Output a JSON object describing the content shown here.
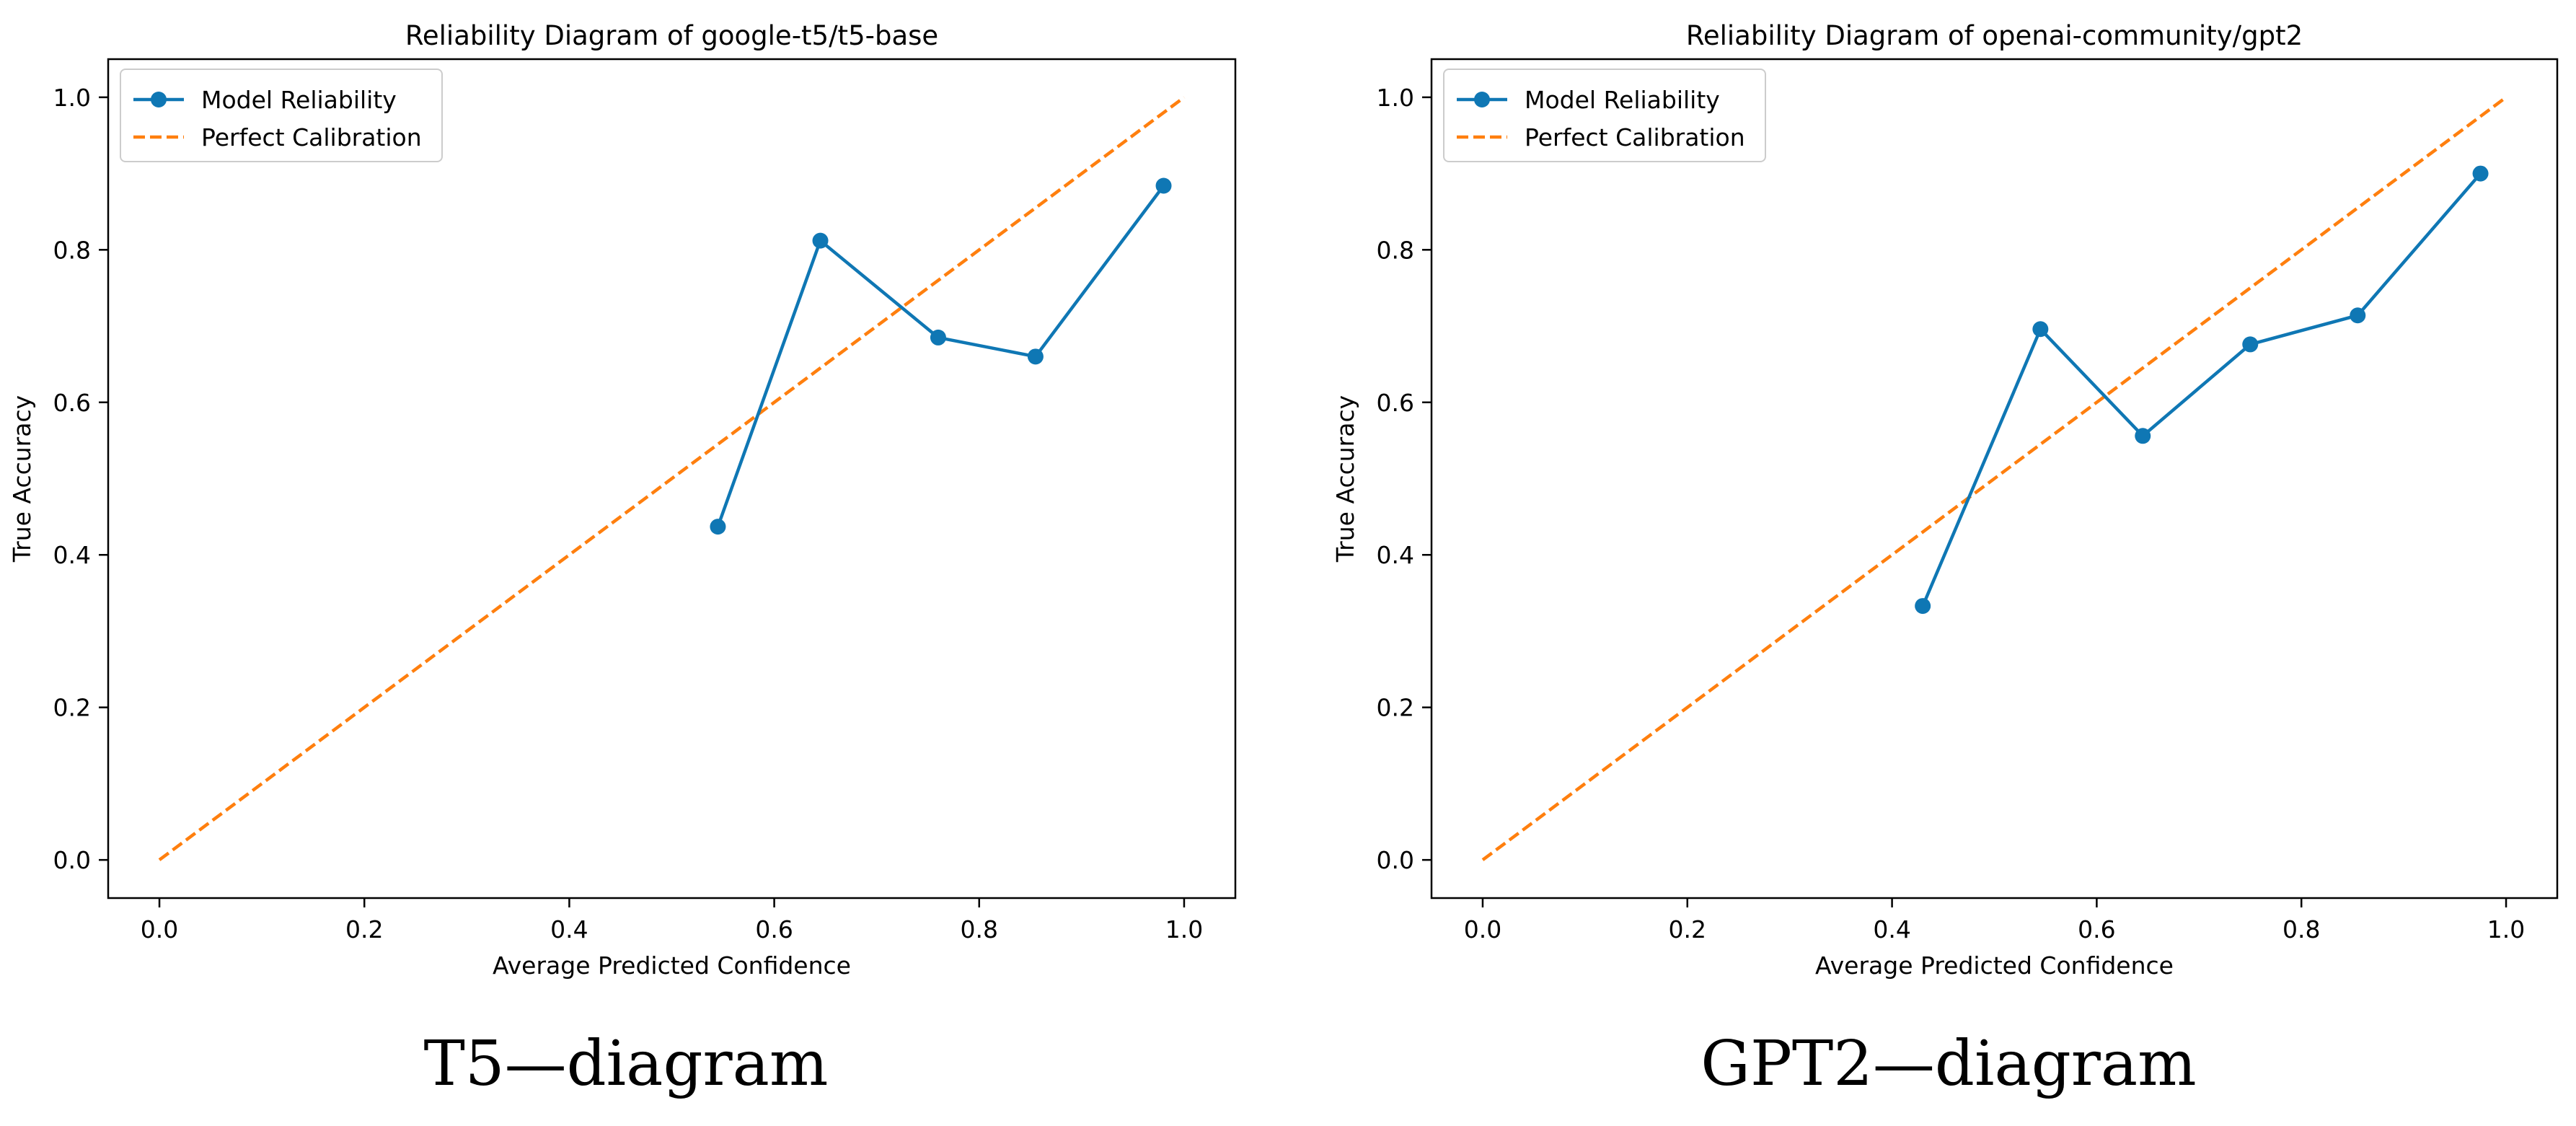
{
  "chart_data": [
    {
      "type": "line",
      "title": "Reliability Diagram of google-t5/t5-base",
      "xlabel": "Average Predicted Confidence",
      "ylabel": "True Accuracy",
      "xlim": [
        -0.05,
        1.05
      ],
      "ylim": [
        -0.05,
        1.05
      ],
      "xticks": [
        "0.0",
        "0.2",
        "0.4",
        "0.6",
        "0.8",
        "1.0"
      ],
      "yticks": [
        "0.0",
        "0.2",
        "0.4",
        "0.6",
        "0.8",
        "1.0"
      ],
      "grid": false,
      "legend_position": "top-left",
      "series": [
        {
          "name": "Model Reliability",
          "style": "solid-with-markers",
          "color": "#0f77b4",
          "x": [
            0.545,
            0.645,
            0.76,
            0.855,
            0.98
          ],
          "y": [
            0.437,
            0.812,
            0.685,
            0.66,
            0.884
          ]
        },
        {
          "name": "Perfect Calibration",
          "style": "dashed",
          "color": "#ff7f0e",
          "x": [
            0.0,
            1.0
          ],
          "y": [
            0.0,
            1.0
          ]
        }
      ]
    },
    {
      "type": "line",
      "title": "Reliability Diagram of openai-community/gpt2",
      "xlabel": "Average Predicted Confidence",
      "ylabel": "True Accuracy",
      "xlim": [
        -0.05,
        1.05
      ],
      "ylim": [
        -0.05,
        1.05
      ],
      "xticks": [
        "0.0",
        "0.2",
        "0.4",
        "0.6",
        "0.8",
        "1.0"
      ],
      "yticks": [
        "0.0",
        "0.2",
        "0.4",
        "0.6",
        "0.8",
        "1.0"
      ],
      "grid": false,
      "legend_position": "top-left",
      "series": [
        {
          "name": "Model Reliability",
          "style": "solid-with-markers",
          "color": "#0f77b4",
          "x": [
            0.43,
            0.545,
            0.645,
            0.75,
            0.855,
            0.975
          ],
          "y": [
            0.333,
            0.696,
            0.556,
            0.676,
            0.714,
            0.9
          ]
        },
        {
          "name": "Perfect Calibration",
          "style": "dashed",
          "color": "#ff7f0e",
          "x": [
            0.0,
            1.0
          ],
          "y": [
            0.0,
            1.0
          ]
        }
      ]
    }
  ],
  "captions": {
    "left": "T5—diagram",
    "right": "GPT2—diagram"
  }
}
